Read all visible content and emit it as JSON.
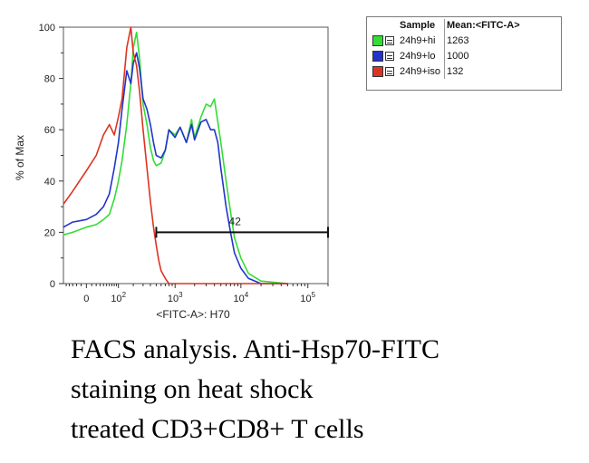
{
  "chart_data": {
    "type": "line",
    "ylabel": "% of Max",
    "xlabel": "<FITC-A>: H70",
    "ylim": [
      0,
      100
    ],
    "y_ticks": [
      "0",
      "20",
      "40",
      "60",
      "80",
      "100"
    ],
    "x_scale": "biexponential",
    "x_ticks": [
      {
        "label": "0",
        "value": 0
      },
      {
        "label": "10",
        "sup": "2",
        "value": 100
      },
      {
        "label": "10",
        "sup": "3",
        "value": 1000
      },
      {
        "label": "10",
        "sup": "4",
        "value": 10000
      },
      {
        "label": "10",
        "sup": "5",
        "value": 100000
      }
    ],
    "gate": {
      "label": "42",
      "from": 500,
      "to": 200000,
      "y": 20
    },
    "series": [
      {
        "name": "24h9+hi",
        "color": "#33dd33",
        "mean": "1263",
        "x": [
          -60,
          -30,
          0,
          20,
          40,
          60,
          80,
          100,
          120,
          150,
          180,
          200,
          230,
          260,
          300,
          350,
          400,
          450,
          500,
          600,
          700,
          800,
          1000,
          1200,
          1500,
          1800,
          2000,
          2500,
          3000,
          3500,
          4000,
          4500,
          5000,
          6000,
          7000,
          8000,
          10000,
          13000,
          20000,
          50000
        ],
        "y": [
          19,
          20,
          22,
          23,
          25,
          27,
          33,
          40,
          48,
          62,
          78,
          92,
          98,
          88,
          70,
          62,
          53,
          48,
          46,
          47,
          52,
          60,
          58,
          61,
          55,
          64,
          57,
          65,
          70,
          69,
          72,
          63,
          55,
          40,
          28,
          18,
          10,
          4,
          1,
          0
        ]
      },
      {
        "name": "24h9+lo",
        "color": "#2233cc",
        "mean": "1000",
        "x": [
          -60,
          -30,
          0,
          20,
          40,
          60,
          80,
          100,
          120,
          150,
          180,
          200,
          230,
          260,
          300,
          350,
          400,
          450,
          500,
          600,
          700,
          800,
          1000,
          1200,
          1500,
          1800,
          2000,
          2500,
          3000,
          3500,
          4000,
          4500,
          5000,
          6000,
          7000,
          8000,
          10000,
          13000,
          20000,
          50000
        ],
        "y": [
          22,
          24,
          25,
          27,
          30,
          35,
          45,
          55,
          68,
          83,
          78,
          86,
          90,
          84,
          72,
          68,
          62,
          55,
          50,
          49,
          52,
          60,
          57,
          61,
          55,
          62,
          56,
          63,
          64,
          60,
          60,
          55,
          45,
          30,
          20,
          12,
          6,
          2,
          0,
          0
        ]
      },
      {
        "name": "24h9+iso",
        "color": "#dd3322",
        "mean": "132",
        "x": [
          -60,
          -30,
          0,
          20,
          40,
          60,
          80,
          100,
          120,
          150,
          180,
          200,
          230,
          260,
          300,
          350,
          400,
          450,
          500,
          550,
          600,
          700,
          800,
          1000,
          2000,
          50000
        ],
        "y": [
          31,
          36,
          44,
          50,
          58,
          62,
          58,
          65,
          72,
          92,
          100,
          90,
          85,
          75,
          60,
          45,
          32,
          22,
          15,
          9,
          5,
          2,
          0,
          0,
          0,
          0
        ]
      }
    ]
  },
  "legend": {
    "header_sample": "Sample",
    "header_mean": "Mean:<FITC-A>"
  },
  "caption": {
    "line1": "FACS analysis. Anti-Hsp70-FITC",
    "line2": "staining on heat shock",
    "line3": "treated CD3+CD8+ T cells"
  }
}
